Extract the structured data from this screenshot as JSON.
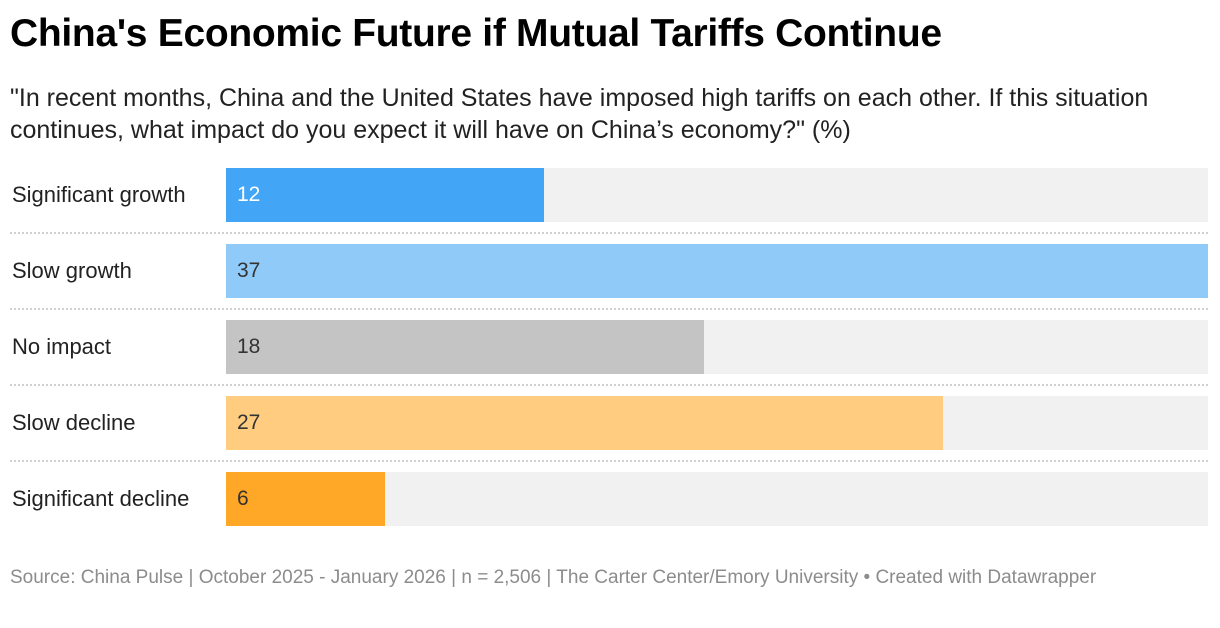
{
  "chart_data": {
    "type": "bar",
    "title": "China's Economic Future if Mutual Tariffs Continue",
    "subtitle": "\"In recent months, China and the United States have imposed high tariffs on each other. If this situation continues, what impact do you expect it will have on China’s economy?\" (%)",
    "categories": [
      "Significant growth",
      "Slow growth",
      "No impact",
      "Slow decline",
      "Significant decline"
    ],
    "values": [
      12,
      37,
      18,
      27,
      6
    ],
    "colors": [
      "#42a5f5",
      "#90caf9",
      "#c4c4c4",
      "#ffcc80",
      "#ffa726"
    ],
    "source": "Source: China Pulse | October 2025 - January 2026 | n = 2,506 | The Carter Center/Emory University • Created with Datawrapper"
  }
}
